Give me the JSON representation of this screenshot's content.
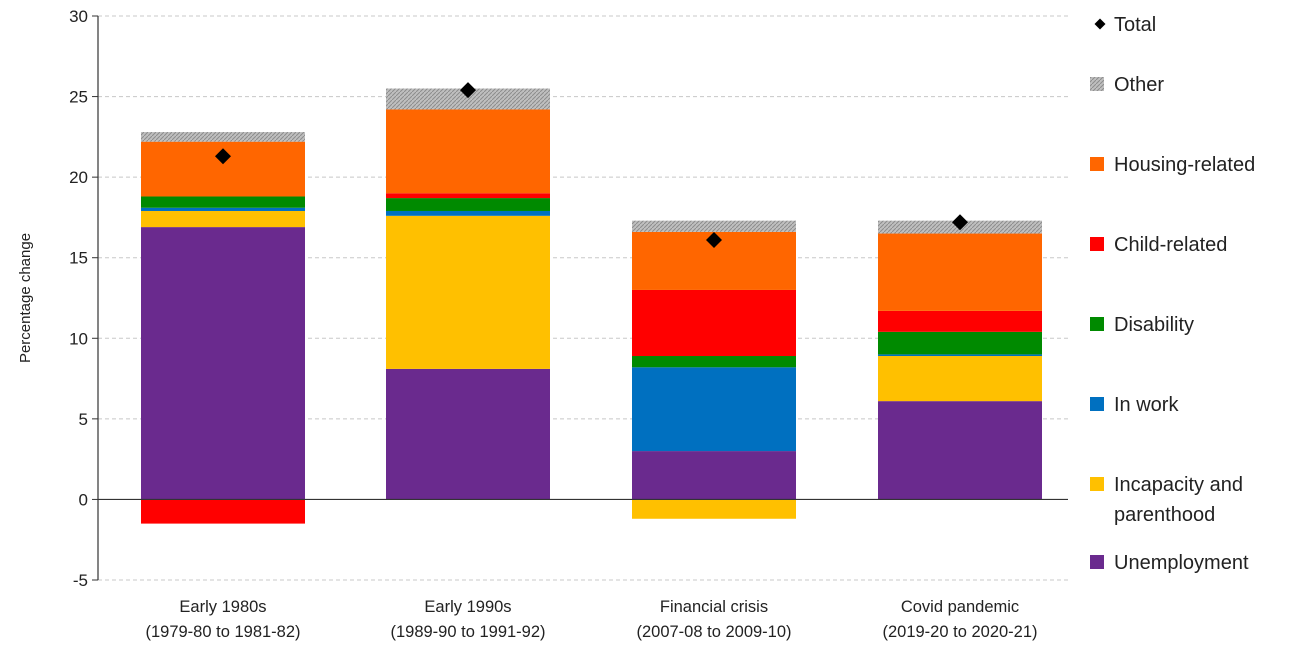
{
  "chart_data": {
    "type": "bar",
    "stacked": true,
    "ylabel": "Percentage change",
    "ylim": [
      -5,
      30
    ],
    "yticks": [
      -5,
      0,
      5,
      10,
      15,
      20,
      25,
      30
    ],
    "grid": "horizontal dashed",
    "legend_position": "right",
    "categories": [
      [
        "Early 1980s",
        "(1979-80 to 1981-82)"
      ],
      [
        "Early 1990s",
        "(1989-90 to 1991-92)"
      ],
      [
        "Financial crisis",
        "(2007-08 to 2009-10)"
      ],
      [
        "Covid pandemic",
        "(2019-20 to 2020-21)"
      ]
    ],
    "series": [
      {
        "name": "Unemployment",
        "color": "#6a2a8e",
        "values": [
          16.9,
          8.1,
          3.0,
          6.1
        ]
      },
      {
        "name": "Incapacity and parenthood",
        "legend_lines": [
          "Incapacity and",
          "parenthood"
        ],
        "color": "#ffc000",
        "values": [
          1.0,
          9.5,
          -1.2,
          2.8
        ]
      },
      {
        "name": "In work",
        "color": "#0070c0",
        "values": [
          0.2,
          0.3,
          5.2,
          0.1
        ]
      },
      {
        "name": "Disability",
        "color": "#008a00",
        "values": [
          0.7,
          0.8,
          0.7,
          1.4
        ]
      },
      {
        "name": "Child-related",
        "color": "#ff0000",
        "values": [
          -1.5,
          0.3,
          4.1,
          1.3
        ]
      },
      {
        "name": "Housing-related",
        "color": "#ff6600",
        "values": [
          3.4,
          5.2,
          3.6,
          4.8
        ]
      },
      {
        "name": "Other",
        "color": "#a6a6a6",
        "values": [
          0.6,
          1.3,
          0.7,
          0.8
        ]
      }
    ],
    "total": {
      "name": "Total",
      "values": [
        21.3,
        25.4,
        16.1,
        17.2
      ]
    },
    "legend_order": [
      "Total",
      "Other",
      "Housing-related",
      "Child-related",
      "Disability",
      "In work",
      "Incapacity and parenthood",
      "Unemployment"
    ]
  }
}
